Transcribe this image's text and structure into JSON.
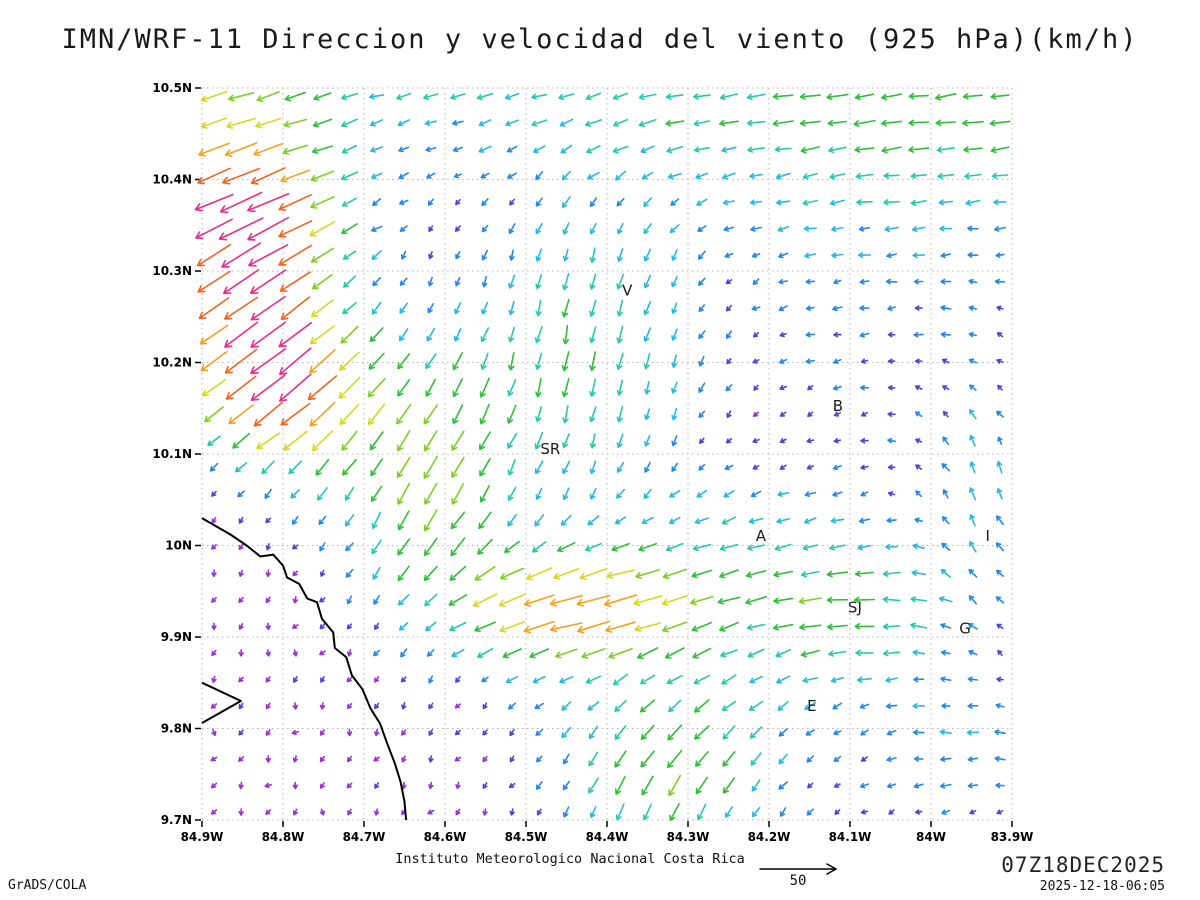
{
  "title": "IMN/WRF-11 Direccion y velocidad del viento (925 hPa)(km/h)",
  "footer": {
    "institution": "Instituto Meteorologico Nacional Costa Rica",
    "credit": "GrADS/COLA",
    "valid_time": "07Z18DEC2025",
    "generated": "2025-12-18-06:05",
    "reference_speed": "50"
  },
  "chart_data": {
    "type": "vector_field",
    "variable": "Wind direction and velocity at 925 hPa",
    "units": "km/h",
    "model": "IMN/WRF-11",
    "reference_vector": 50,
    "grid": {
      "nx": 30,
      "ny": 28
    },
    "x_axis": {
      "range": [
        84.9,
        83.9
      ],
      "direction": "degrees West, left to right",
      "ticks": [
        {
          "v": 84.9,
          "label": "84.9W"
        },
        {
          "v": 84.8,
          "label": "84.8W"
        },
        {
          "v": 84.7,
          "label": "84.7W"
        },
        {
          "v": 84.6,
          "label": "84.6W"
        },
        {
          "v": 84.5,
          "label": "84.5W"
        },
        {
          "v": 84.4,
          "label": "84.4W"
        },
        {
          "v": 84.3,
          "label": "84.3W"
        },
        {
          "v": 84.2,
          "label": "84.2W"
        },
        {
          "v": 84.1,
          "label": "84.1W"
        },
        {
          "v": 84.0,
          "label": "84W"
        },
        {
          "v": 83.9,
          "label": "83.9W"
        }
      ]
    },
    "y_axis": {
      "range": [
        9.7,
        10.5
      ],
      "direction": "degrees North, bottom to top",
      "ticks": [
        {
          "v": 10.5,
          "label": "10.5N"
        },
        {
          "v": 10.4,
          "label": "10.4N"
        },
        {
          "v": 10.3,
          "label": "10.3N"
        },
        {
          "v": 10.2,
          "label": "10.2N"
        },
        {
          "v": 10.1,
          "label": "10.1N"
        },
        {
          "v": 10.0,
          "label": "10N"
        },
        {
          "v": 9.9,
          "label": "9.9N"
        },
        {
          "v": 9.8,
          "label": "9.8N"
        },
        {
          "v": 9.7,
          "label": "9.7N"
        }
      ]
    },
    "speed_colors": [
      {
        "max": 5,
        "color": "#9b30d8"
      },
      {
        "max": 8,
        "color": "#4646dc"
      },
      {
        "max": 12,
        "color": "#2288ee"
      },
      {
        "max": 16,
        "color": "#28b8e0"
      },
      {
        "max": 20,
        "color": "#27c9ae"
      },
      {
        "max": 25,
        "color": "#2fbf3a"
      },
      {
        "max": 29,
        "color": "#7ecf25"
      },
      {
        "max": 34,
        "color": "#d8d81e"
      },
      {
        "max": 39,
        "color": "#f5a11c"
      },
      {
        "max": 45,
        "color": "#f4641e"
      },
      {
        "max": 999,
        "color": "#ee2a8c"
      }
    ],
    "stations": [
      {
        "label": "V",
        "lon": 84.375,
        "lat": 10.273
      },
      {
        "label": "B",
        "lon": 84.115,
        "lat": 10.147
      },
      {
        "label": "SR",
        "lon": 84.47,
        "lat": 10.1
      },
      {
        "label": "A",
        "lon": 84.21,
        "lat": 10.005
      },
      {
        "label": "I",
        "lon": 83.93,
        "lat": 10.005
      },
      {
        "label": "SJ",
        "lon": 84.094,
        "lat": 9.927
      },
      {
        "label": "G",
        "lon": 83.958,
        "lat": 9.904
      },
      {
        "label": "E",
        "lon": 84.147,
        "lat": 9.819
      }
    ],
    "coastlines": [
      [
        [
          84.9,
          10.03
        ],
        [
          84.865,
          10.012
        ],
        [
          84.845,
          10.0
        ],
        [
          84.828,
          9.988
        ],
        [
          84.812,
          9.99
        ],
        [
          84.8,
          9.978
        ],
        [
          84.795,
          9.965
        ],
        [
          84.78,
          9.958
        ],
        [
          84.77,
          9.942
        ],
        [
          84.758,
          9.938
        ],
        [
          84.752,
          9.92
        ],
        [
          84.738,
          9.905
        ],
        [
          84.736,
          9.888
        ],
        [
          84.722,
          9.878
        ],
        [
          84.715,
          9.858
        ],
        [
          84.702,
          9.843
        ],
        [
          84.692,
          9.822
        ],
        [
          84.68,
          9.805
        ],
        [
          84.672,
          9.785
        ],
        [
          84.662,
          9.762
        ],
        [
          84.655,
          9.742
        ],
        [
          84.65,
          9.72
        ],
        [
          84.648,
          9.7
        ]
      ],
      [
        [
          84.9,
          9.85
        ],
        [
          84.852,
          9.83
        ],
        [
          84.9,
          9.806
        ]
      ]
    ],
    "wind_field": {
      "note": "Flow synthesized from gaussian features; u positive eastward, v positive northward, km/h",
      "base": {
        "u": -1.2,
        "v": -2.6
      },
      "jitter": 4,
      "features": [
        {
          "name": "north-strip-easterly",
          "lon": 84.4,
          "lat": 10.5,
          "slon": 0.55,
          "slat": 0.075,
          "u": -13,
          "v": -1
        },
        {
          "name": "northeast-easterly",
          "lon": 83.95,
          "lat": 10.45,
          "slon": 0.3,
          "slat": 0.09,
          "u": -9,
          "v": 0
        },
        {
          "name": "northwest-corner",
          "lon": 84.87,
          "lat": 10.46,
          "slon": 0.1,
          "slat": 0.08,
          "u": -16,
          "v": -4
        },
        {
          "name": "west-jet-core",
          "lon": 84.84,
          "lat": 10.27,
          "slon": 0.08,
          "slat": 0.09,
          "u": -30,
          "v": -20
        },
        {
          "name": "west-jet-south",
          "lon": 84.79,
          "lat": 10.16,
          "slon": 0.07,
          "slat": 0.06,
          "u": -22,
          "v": -16
        },
        {
          "name": "nw-orange-band",
          "lon": 84.84,
          "lat": 10.36,
          "slon": 0.07,
          "slat": 0.05,
          "u": -20,
          "v": -6
        },
        {
          "name": "west-central-diagonal",
          "lon": 84.62,
          "lat": 10.08,
          "slon": 0.08,
          "slat": 0.11,
          "u": -12,
          "v": -20
        },
        {
          "name": "central-northerly",
          "lon": 84.42,
          "lat": 10.22,
          "slon": 0.1,
          "slat": 0.12,
          "u": -2,
          "v": -17
        },
        {
          "name": "valley-easterly-streak",
          "lon": 84.45,
          "lat": 9.93,
          "slon": 0.1,
          "slat": 0.045,
          "u": -30,
          "v": -4
        },
        {
          "name": "valley-broad-easterly",
          "lon": 84.22,
          "lat": 9.97,
          "slon": 0.16,
          "slat": 0.07,
          "u": -16,
          "v": -2
        },
        {
          "name": "east-weak-easterly",
          "lon": 84.05,
          "lat": 10.28,
          "slon": 0.18,
          "slat": 0.15,
          "u": -7,
          "v": 1
        },
        {
          "name": "right-edge-southerly",
          "lon": 83.94,
          "lat": 10.05,
          "slon": 0.06,
          "slat": 0.12,
          "u": -1,
          "v": 15
        },
        {
          "name": "south-central-sw",
          "lon": 84.3,
          "lat": 9.8,
          "slon": 0.13,
          "slat": 0.08,
          "u": -11,
          "v": -8
        },
        {
          "name": "south-central-downburst",
          "lon": 84.34,
          "lat": 9.73,
          "slon": 0.08,
          "slat": 0.05,
          "u": -3,
          "v": -13
        },
        {
          "name": "southeast-cyan",
          "lon": 83.95,
          "lat": 9.77,
          "slon": 0.1,
          "slat": 0.06,
          "u": -10,
          "v": 2
        },
        {
          "name": "sj-easterly",
          "lon": 84.08,
          "lat": 9.91,
          "slon": 0.08,
          "slat": 0.05,
          "u": -12,
          "v": 3
        }
      ]
    }
  }
}
